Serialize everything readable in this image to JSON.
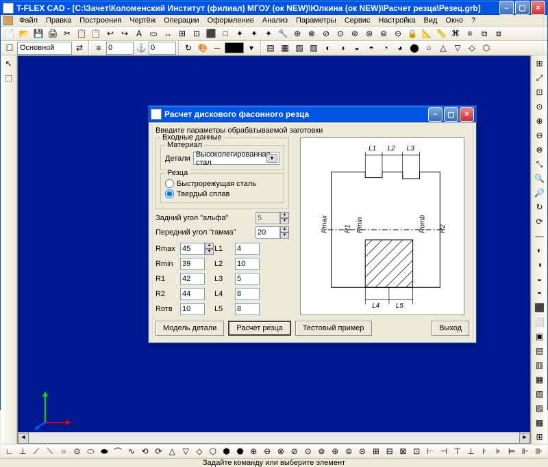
{
  "main": {
    "title": "T-FLEX CAD - [C:\\Зачет\\Коломенский Институт (филиал) МГОУ (ок NEW)\\Юлкина (ок NEW)\\Расчет резца\\Резец.grb]",
    "menus": [
      "Файл",
      "Правка",
      "Построения",
      "Чертёж",
      "Операции",
      "Оформление",
      "Анализ",
      "Параметры",
      "Сервис",
      "Настройка",
      "Вид",
      "Окно",
      "?"
    ],
    "layer_combo": "Основной",
    "spin1": "0",
    "spin2": "0"
  },
  "dialog": {
    "title": "Расчет дискового фасонного резца",
    "intro": "Введите параметры обрабатываемой заготовки",
    "grp_input": "Входные данные",
    "grp_material": "Материал",
    "lbl_detail": "Детали",
    "detail_material": "Высоколегированная стал",
    "grp_cutter": "Резца",
    "radio_fast": "Быстрорежущая сталь",
    "radio_hard": "Твердый сплав",
    "radio_selected": "hard",
    "lbl_alpha": "Задний угол \"альфа\"",
    "val_alpha": "5",
    "lbl_gamma": "Передний угол \"гамма\"",
    "val_gamma": "20",
    "params": {
      "Rmax": "45",
      "Rmin": "39",
      "R1": "42",
      "R2": "44",
      "Rotv": "10",
      "L1": "4",
      "L2": "10",
      "L3": "5",
      "L4": "8",
      "L5": "8"
    },
    "lbl_Rmax": "Rmax",
    "lbl_Rmin": "Rmin",
    "lbl_R1": "R1",
    "lbl_R2": "R2",
    "lbl_Rotv": "Rотв",
    "lbl_L1": "L1",
    "lbl_L2": "L2",
    "lbl_L3": "L3",
    "lbl_L4": "L4",
    "lbl_L5": "L5",
    "btn_model": "Модель детали",
    "btn_calc": "Расчет резца",
    "btn_test": "Тестовый пример",
    "btn_exit": "Выход",
    "diagram_labels": {
      "L1": "L1",
      "L2": "L2",
      "L3": "L3",
      "L4": "L4",
      "L5": "L5",
      "Rmax": "Rmax",
      "R1": "R1",
      "Rmin": "Rmin",
      "Romb": "Romb",
      "R2": "R2"
    }
  },
  "status": "Задайте команду или выберите элемент",
  "colors": {
    "canvas_bg": "#001890",
    "titlebar_start": "#3c8cde",
    "titlebar_end": "#0054e3",
    "panel_bg": "#ece9d8"
  },
  "icons": {
    "tb1": [
      "📄",
      "📂",
      "💾",
      "🖨",
      "✂",
      "📋",
      "📋",
      "↩",
      "↪",
      "A",
      "▭",
      "↔",
      "⊞",
      "⊡",
      "⬛",
      "□",
      "✦",
      "✦",
      "✦",
      "🔧",
      "⊕",
      "⊗",
      "⊘",
      "⊙",
      "⊚",
      "⊛",
      "⊜",
      "⊝",
      "🔒",
      "📐",
      "📏",
      "⌘",
      "≡",
      "⧉",
      "⧈"
    ],
    "tb2": [
      "▤",
      "▦",
      "▧",
      "▨",
      "◐",
      "◑",
      "◒",
      "◓",
      "◔",
      "◕",
      "⬤",
      "○",
      "△",
      "▽",
      "◇",
      "⬡"
    ],
    "left": [
      "↖",
      "⬚"
    ],
    "right": [
      "⊞",
      "⤢",
      "⊡",
      "⊙",
      "⊕",
      "⊖",
      "⊗",
      "⤡",
      "🔍",
      "🔎",
      "↻",
      "⟳",
      "—",
      "◐",
      "◑",
      "◒",
      "◓",
      "⬛",
      "⬜",
      "▣",
      "▤",
      "▥",
      "▦",
      "▧",
      "▨",
      "▩",
      "⊞"
    ],
    "bottom": [
      "∟",
      "⊥",
      "⟋",
      "⟍",
      "○",
      "⊙",
      "⬭",
      "⬬",
      "⌒",
      "∿",
      "⟲",
      "⟳",
      "△",
      "▽",
      "◇",
      "⬡",
      "⬢",
      "⬣",
      "⊕",
      "⊖",
      "⊗",
      "⊘",
      "⊙",
      "⊚",
      "⊛",
      "⊜",
      "⊝",
      "⊞",
      "⊟",
      "⊠",
      "⊡",
      "⊢",
      "⊣",
      "⊤",
      "⊥",
      "⊦",
      "⊧",
      "⊨",
      "⊩",
      "⊪"
    ]
  }
}
